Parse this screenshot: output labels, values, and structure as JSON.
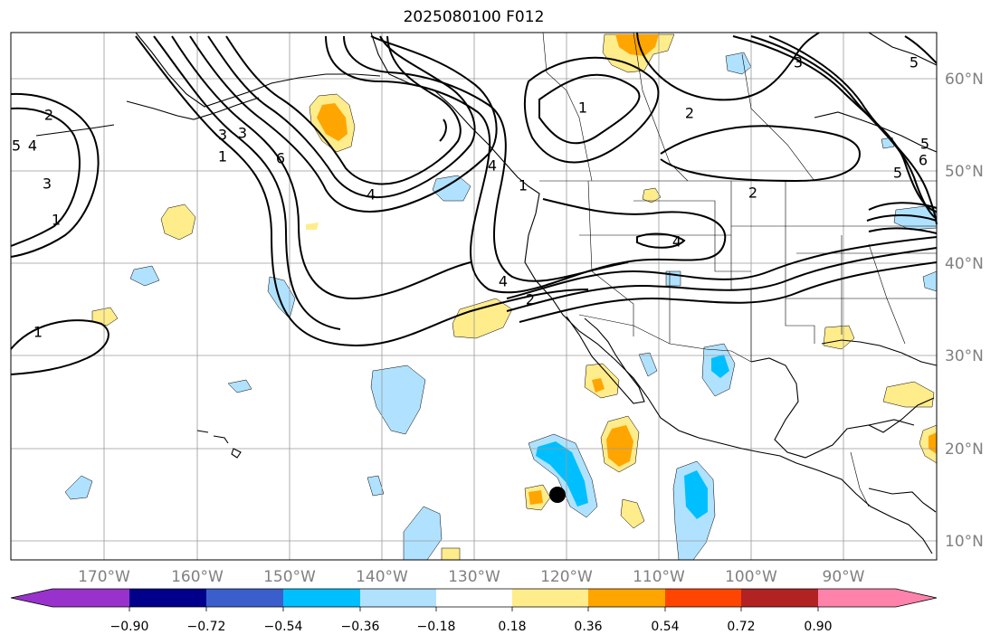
{
  "title": "2025080100 F012",
  "map": {
    "longitude_ticks": [
      "170°W",
      "160°W",
      "150°W",
      "140°W",
      "130°W",
      "120°W",
      "110°W",
      "100°W",
      "90°W"
    ],
    "latitude_ticks": [
      "60°N",
      "50°N",
      "40°N",
      "30°N",
      "20°N",
      "10°N"
    ],
    "gridlines": true,
    "contour_labels": [
      "2",
      "5",
      "4",
      "3",
      "1",
      "3",
      "3",
      "1",
      "6",
      "4",
      "1",
      "1",
      "2",
      "4",
      "4",
      "2",
      "1",
      "4",
      "2",
      "5",
      "6",
      "5",
      "5",
      "3"
    ],
    "marker": "black-dot"
  },
  "colorbar": {
    "tick_labels": [
      "−0.90",
      "−0.72",
      "−0.54",
      "−0.36",
      "−0.18",
      "0.18",
      "0.36",
      "0.54",
      "0.72",
      "0.90"
    ],
    "colors": [
      "#9932cc",
      "#00008b",
      "#3a5fcd",
      "#00bfff",
      "#b0e2ff",
      "#ffffff",
      "#ffec8b",
      "#ffa500",
      "#ff4500",
      "#b22222",
      "#ff82ab"
    ]
  }
}
